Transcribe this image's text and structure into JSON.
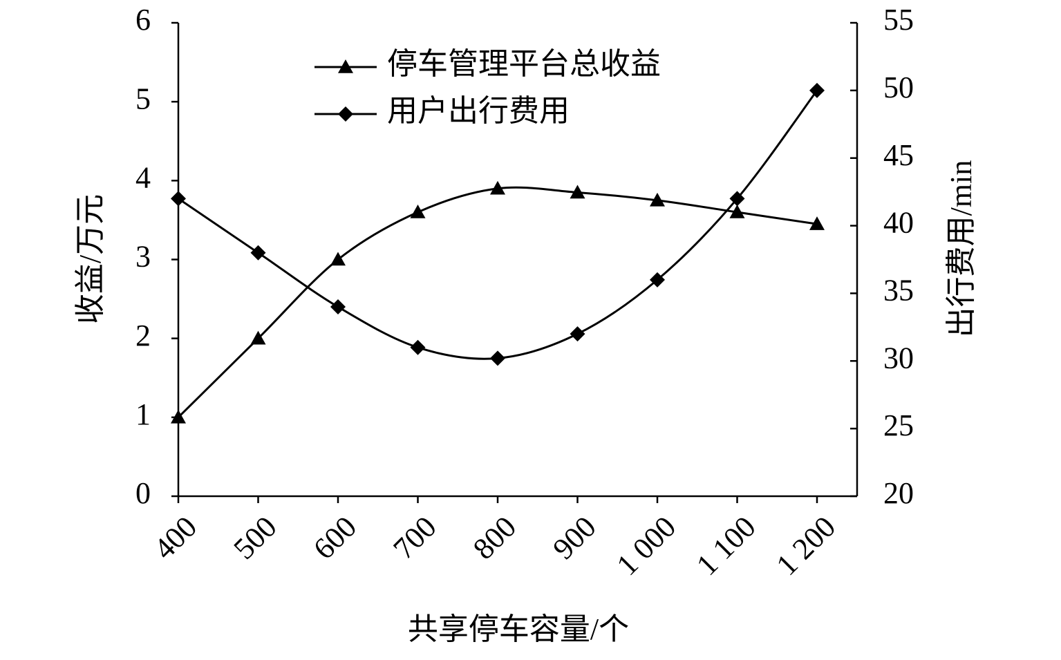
{
  "chart_data": {
    "type": "line",
    "x_label": "共享停车容量/个",
    "y_label": "收益/万元",
    "y2_label": "出行费用/min",
    "categories": [
      "400",
      "500",
      "600",
      "700",
      "800",
      "900",
      "1 000",
      "1 100",
      "1 200"
    ],
    "series": [
      {
        "name": "停车管理平台总收益",
        "color": "#000000",
        "marker": "triangle",
        "values": [
          1.0,
          2.0,
          3.0,
          3.6,
          3.9,
          3.85,
          3.75,
          3.6,
          3.45
        ]
      },
      {
        "name": "用户出行费用",
        "color": "#000000",
        "marker": "diamond",
        "axis": "y2",
        "values": [
          42,
          38,
          34,
          31,
          30.2,
          32,
          36,
          42,
          50
        ]
      }
    ],
    "ylim": [
      0,
      6
    ],
    "yticks": [
      0,
      1,
      2,
      3,
      4,
      5,
      6
    ],
    "y2lim": [
      20,
      55
    ],
    "y2ticks": [
      20,
      25,
      30,
      35,
      40,
      45,
      50,
      55
    ],
    "smooth": true,
    "grid": false,
    "legend": "top"
  }
}
